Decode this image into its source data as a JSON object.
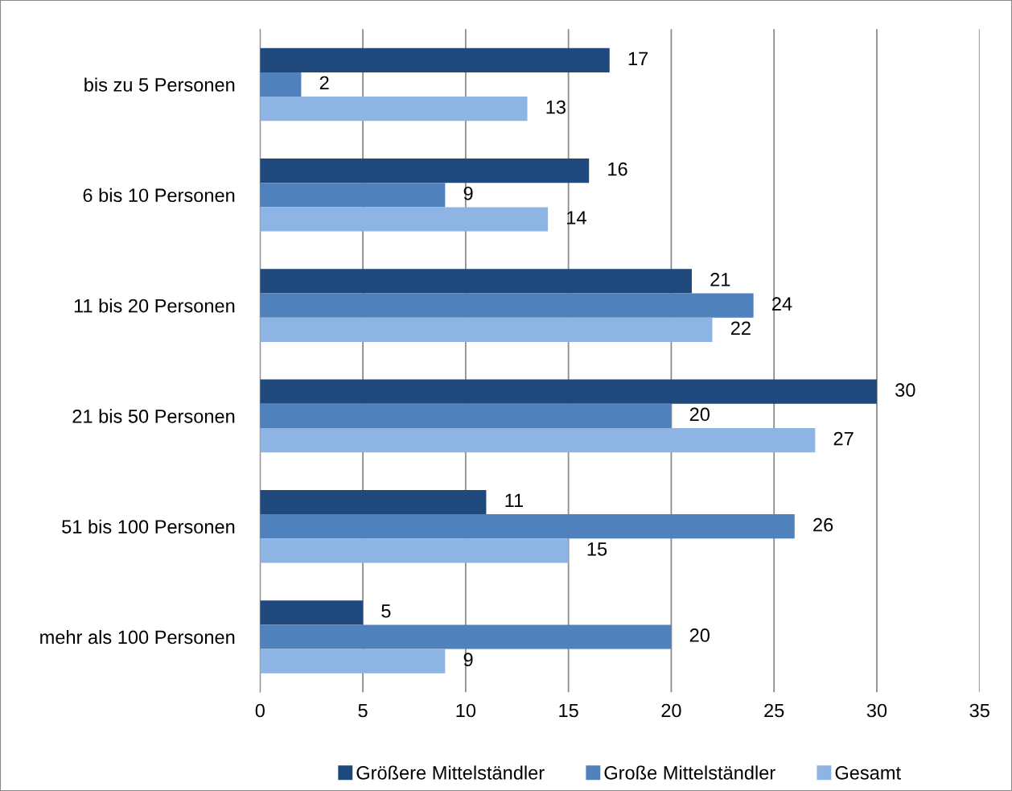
{
  "chart_data": {
    "type": "bar",
    "orientation": "horizontal",
    "categories": [
      "bis zu 5 Personen",
      "6 bis 10 Personen",
      "11 bis 20 Personen",
      "21 bis 50 Personen",
      "51 bis 100 Personen",
      "mehr als 100 Personen"
    ],
    "series": [
      {
        "name": "Größere Mittelständler",
        "color": "#1f497d",
        "values": [
          17,
          16,
          21,
          30,
          11,
          5
        ]
      },
      {
        "name": "Große Mittelständler",
        "color": "#4f81bd",
        "values": [
          2,
          9,
          24,
          20,
          26,
          20
        ]
      },
      {
        "name": "Gesamt",
        "color": "#8eb4e3",
        "values": [
          13,
          14,
          22,
          27,
          15,
          9
        ]
      }
    ],
    "xlim": [
      0,
      35
    ],
    "xticks": [
      0,
      5,
      10,
      15,
      20,
      25,
      30,
      35
    ],
    "grid": "x",
    "legend": "bottom",
    "data_labels": true
  }
}
